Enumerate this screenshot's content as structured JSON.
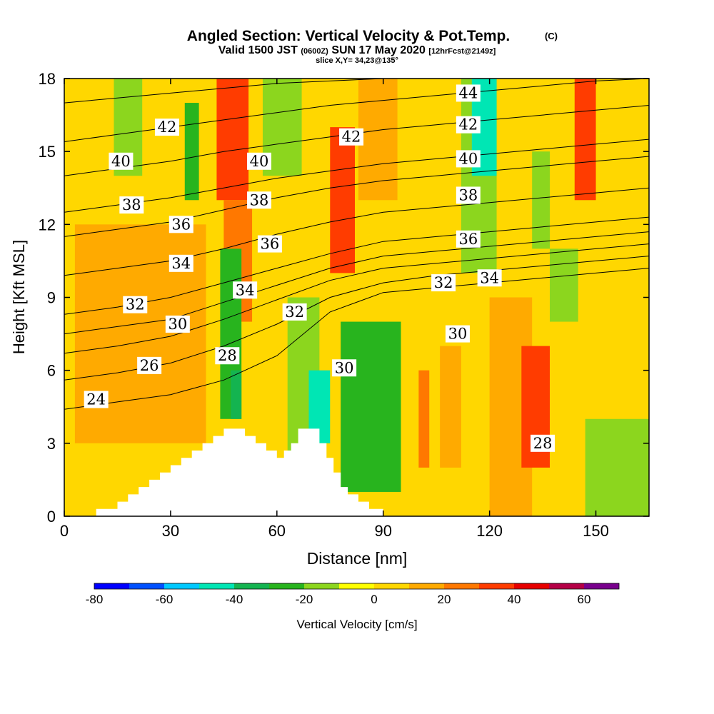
{
  "chart_data": {
    "type": "heatmap",
    "title": "Angled Section: Vertical Velocity & Pot.Temp.",
    "title_suffix": "(C)",
    "subtitle_main": "Valid 1500 JST",
    "subtitle_z": "(0600Z)",
    "subtitle_date": "SUN 17 May 2020",
    "subtitle_fcst": "[12hrFcst@2149z]",
    "slice_info": "slice X,Y= 34,23@135°",
    "xlabel": "Distance [nm]",
    "ylabel": "Height [Kft MSL]",
    "xlim": [
      0,
      165
    ],
    "ylim": [
      0,
      18
    ],
    "x_ticks": [
      "0",
      "30",
      "60",
      "90",
      "120",
      "150"
    ],
    "y_ticks": [
      "0",
      "3",
      "6",
      "9",
      "12",
      "15",
      "18"
    ],
    "colorbar": {
      "label": "Vertical Velocity [cm/s]",
      "tick_labels": [
        "-80",
        "-60",
        "-40",
        "-20",
        "0",
        "20",
        "40",
        "60"
      ],
      "range": [
        -80,
        70
      ],
      "step": 10,
      "colors": [
        "#0000ff",
        "#0050ff",
        "#00c8ff",
        "#00e6b4",
        "#14b450",
        "#28b41e",
        "#8cd61e",
        "#ffff00",
        "#ffd700",
        "#ffaa00",
        "#ff7800",
        "#ff3c00",
        "#e60000",
        "#b40046",
        "#78008c"
      ]
    },
    "velocity_cells": [
      {
        "x": [
          0,
          165
        ],
        "y": [
          0,
          18
        ],
        "value": 5
      },
      {
        "x": [
          3,
          40
        ],
        "y": [
          3,
          12
        ],
        "value": 15
      },
      {
        "x": [
          14,
          22
        ],
        "y": [
          14,
          18
        ],
        "value": -15
      },
      {
        "x": [
          34,
          38
        ],
        "y": [
          13,
          17
        ],
        "value": -25
      },
      {
        "x": [
          43,
          52
        ],
        "y": [
          13,
          18
        ],
        "value": 35
      },
      {
        "x": [
          45,
          53
        ],
        "y": [
          8,
          13
        ],
        "value": 25
      },
      {
        "x": [
          56,
          67
        ],
        "y": [
          14,
          18
        ],
        "value": -15
      },
      {
        "x": [
          44,
          50
        ],
        "y": [
          4,
          11
        ],
        "value": -25
      },
      {
        "x": [
          47,
          50
        ],
        "y": [
          4,
          6
        ],
        "value": -35
      },
      {
        "x": [
          63,
          72
        ],
        "y": [
          0,
          9
        ],
        "value": -15
      },
      {
        "x": [
          69,
          75
        ],
        "y": [
          3,
          6
        ],
        "value": -45
      },
      {
        "x": [
          75,
          82
        ],
        "y": [
          10,
          16
        ],
        "value": 35
      },
      {
        "x": [
          78,
          95
        ],
        "y": [
          1,
          8
        ],
        "value": -25
      },
      {
        "x": [
          83,
          94
        ],
        "y": [
          13,
          18
        ],
        "value": 15
      },
      {
        "x": [
          100,
          103
        ],
        "y": [
          2,
          6
        ],
        "value": 25
      },
      {
        "x": [
          106,
          112
        ],
        "y": [
          2,
          7
        ],
        "value": 15
      },
      {
        "x": [
          112,
          122
        ],
        "y": [
          10,
          18
        ],
        "value": -15
      },
      {
        "x": [
          115,
          122
        ],
        "y": [
          14,
          18
        ],
        "value": -45
      },
      {
        "x": [
          120,
          132
        ],
        "y": [
          0,
          9
        ],
        "value": 15
      },
      {
        "x": [
          129,
          137
        ],
        "y": [
          2,
          7
        ],
        "value": 35
      },
      {
        "x": [
          132,
          137
        ],
        "y": [
          11,
          15
        ],
        "value": -15
      },
      {
        "x": [
          137,
          145
        ],
        "y": [
          8,
          11
        ],
        "value": -15
      },
      {
        "x": [
          144,
          150
        ],
        "y": [
          13,
          18
        ],
        "value": 35
      },
      {
        "x": [
          147,
          165
        ],
        "y": [
          0,
          4
        ],
        "value": -15
      }
    ],
    "terrain_profile": [
      [
        0,
        0
      ],
      [
        9,
        0
      ],
      [
        9,
        0.3
      ],
      [
        15,
        0.3
      ],
      [
        15,
        0.6
      ],
      [
        18,
        0.6
      ],
      [
        18,
        0.9
      ],
      [
        21,
        0.9
      ],
      [
        21,
        1.2
      ],
      [
        24,
        1.2
      ],
      [
        24,
        1.5
      ],
      [
        27,
        1.5
      ],
      [
        27,
        1.8
      ],
      [
        30,
        1.8
      ],
      [
        30,
        2.1
      ],
      [
        33,
        2.1
      ],
      [
        33,
        2.4
      ],
      [
        36,
        2.4
      ],
      [
        36,
        2.7
      ],
      [
        39,
        2.7
      ],
      [
        39,
        3.0
      ],
      [
        42,
        3.0
      ],
      [
        42,
        3.3
      ],
      [
        45,
        3.3
      ],
      [
        45,
        3.6
      ],
      [
        48,
        3.6
      ],
      [
        48,
        3.6
      ],
      [
        51,
        3.6
      ],
      [
        51,
        3.3
      ],
      [
        54,
        3.3
      ],
      [
        54,
        3.0
      ],
      [
        57,
        3.0
      ],
      [
        57,
        2.7
      ],
      [
        60,
        2.7
      ],
      [
        60,
        2.4
      ],
      [
        62,
        2.4
      ],
      [
        62,
        2.7
      ],
      [
        64,
        2.7
      ],
      [
        64,
        3.0
      ],
      [
        66,
        3.0
      ],
      [
        66,
        3.6
      ],
      [
        72,
        3.6
      ],
      [
        72,
        3.0
      ],
      [
        74,
        3.0
      ],
      [
        74,
        2.4
      ],
      [
        76,
        2.4
      ],
      [
        76,
        1.8
      ],
      [
        78,
        1.8
      ],
      [
        78,
        1.2
      ],
      [
        80,
        1.2
      ],
      [
        80,
        0.9
      ],
      [
        83,
        0.9
      ],
      [
        83,
        0.6
      ],
      [
        86,
        0.6
      ],
      [
        86,
        0.3
      ],
      [
        90,
        0.3
      ],
      [
        90,
        0
      ],
      [
        165,
        0
      ]
    ],
    "theta_contours": [
      {
        "label": "24",
        "label_x": 9,
        "label_y": 4.8,
        "points": [
          [
            0,
            4.4
          ],
          [
            15,
            4.7
          ],
          [
            30,
            5.0
          ],
          [
            45,
            5.6
          ],
          [
            60,
            6.6
          ],
          [
            75,
            8.4
          ],
          [
            90,
            9.2
          ],
          [
            105,
            9.4
          ],
          [
            120,
            9.6
          ],
          [
            135,
            9.8
          ],
          [
            150,
            10.0
          ],
          [
            165,
            10.2
          ]
        ]
      },
      {
        "label": "26",
        "label_x": 24,
        "label_y": 6.2,
        "points": [
          [
            0,
            5.6
          ],
          [
            15,
            5.9
          ],
          [
            30,
            6.3
          ],
          [
            45,
            7.0
          ],
          [
            60,
            7.9
          ],
          [
            75,
            9.0
          ],
          [
            90,
            9.6
          ],
          [
            105,
            9.9
          ],
          [
            120,
            10.1
          ],
          [
            135,
            10.3
          ],
          [
            150,
            10.5
          ],
          [
            165,
            10.7
          ]
        ]
      },
      {
        "label": "28",
        "label_x": 46,
        "label_y": 6.6,
        "points": [
          [
            0,
            6.7
          ],
          [
            15,
            7.0
          ],
          [
            30,
            7.4
          ],
          [
            45,
            8.1
          ],
          [
            60,
            8.9
          ],
          [
            75,
            9.7
          ],
          [
            90,
            10.2
          ],
          [
            105,
            10.4
          ],
          [
            120,
            10.6
          ],
          [
            135,
            10.8
          ],
          [
            150,
            11.0
          ],
          [
            165,
            11.2
          ]
        ]
      },
      {
        "label": "30",
        "label_x": 32,
        "label_y": 7.9,
        "points": [
          [
            0,
            7.5
          ],
          [
            15,
            7.8
          ],
          [
            30,
            8.1
          ],
          [
            45,
            8.8
          ],
          [
            60,
            9.5
          ],
          [
            75,
            10.2
          ],
          [
            90,
            10.7
          ],
          [
            105,
            10.9
          ],
          [
            120,
            11.1
          ],
          [
            135,
            11.3
          ],
          [
            150,
            11.5
          ],
          [
            165,
            11.7
          ]
        ]
      },
      {
        "label": "32",
        "label_x": 20,
        "label_y": 8.7,
        "points": [
          [
            0,
            8.3
          ],
          [
            15,
            8.6
          ],
          [
            30,
            9.0
          ],
          [
            45,
            9.6
          ],
          [
            60,
            10.2
          ],
          [
            75,
            10.8
          ],
          [
            90,
            11.3
          ],
          [
            105,
            11.5
          ],
          [
            120,
            11.7
          ],
          [
            135,
            11.9
          ],
          [
            150,
            12.1
          ],
          [
            165,
            12.3
          ]
        ]
      },
      {
        "label": "34",
        "label_x": 33,
        "label_y": 10.4,
        "points": [
          [
            0,
            9.9
          ],
          [
            15,
            10.2
          ],
          [
            30,
            10.5
          ],
          [
            45,
            11.0
          ],
          [
            60,
            11.6
          ],
          [
            75,
            12.1
          ],
          [
            90,
            12.5
          ],
          [
            105,
            12.7
          ],
          [
            120,
            12.9
          ],
          [
            135,
            13.1
          ],
          [
            150,
            13.3
          ],
          [
            165,
            13.5
          ]
        ]
      },
      {
        "label": "36",
        "label_x": 33,
        "label_y": 12.0,
        "points": [
          [
            0,
            11.5
          ],
          [
            15,
            11.8
          ],
          [
            30,
            12.1
          ],
          [
            45,
            12.6
          ],
          [
            60,
            13.1
          ],
          [
            75,
            13.5
          ],
          [
            90,
            13.8
          ],
          [
            105,
            14.0
          ],
          [
            120,
            14.2
          ],
          [
            135,
            14.4
          ],
          [
            150,
            14.6
          ],
          [
            165,
            14.8
          ]
        ]
      },
      {
        "label": "38",
        "label_x": 19,
        "label_y": 12.8,
        "points": [
          [
            0,
            12.5
          ],
          [
            15,
            12.8
          ],
          [
            30,
            13.1
          ],
          [
            45,
            13.5
          ],
          [
            60,
            13.9
          ],
          [
            75,
            14.2
          ],
          [
            90,
            14.5
          ],
          [
            105,
            14.7
          ],
          [
            120,
            14.9
          ],
          [
            135,
            15.1
          ],
          [
            150,
            15.3
          ],
          [
            165,
            15.5
          ]
        ]
      },
      {
        "label": "40",
        "label_x": 16,
        "label_y": 14.6,
        "points": [
          [
            0,
            14.0
          ],
          [
            15,
            14.3
          ],
          [
            30,
            14.6
          ],
          [
            45,
            15.0
          ],
          [
            60,
            15.3
          ],
          [
            75,
            15.6
          ],
          [
            90,
            15.9
          ],
          [
            105,
            16.1
          ],
          [
            120,
            16.3
          ],
          [
            135,
            16.5
          ],
          [
            150,
            16.7
          ],
          [
            165,
            16.9
          ]
        ]
      },
      {
        "label": "42",
        "label_x": 29,
        "label_y": 16.0,
        "points": [
          [
            0,
            15.4
          ],
          [
            15,
            15.7
          ],
          [
            30,
            16.0
          ],
          [
            45,
            16.3
          ],
          [
            60,
            16.6
          ],
          [
            75,
            16.9
          ],
          [
            90,
            17.1
          ],
          [
            105,
            17.3
          ],
          [
            120,
            17.5
          ],
          [
            135,
            17.7
          ],
          [
            150,
            17.9
          ],
          [
            165,
            18.0
          ]
        ]
      },
      {
        "label": "44",
        "label_x": 114,
        "label_y": 17.4,
        "points": [
          [
            0,
            17.0
          ],
          [
            15,
            17.2
          ],
          [
            30,
            17.4
          ],
          [
            45,
            17.6
          ],
          [
            60,
            17.8
          ],
          [
            75,
            17.9
          ],
          [
            90,
            18.0
          ]
        ]
      }
    ],
    "extra_labels": [
      {
        "label": "40",
        "x": 55,
        "y": 14.6
      },
      {
        "label": "38",
        "x": 55,
        "y": 13.0
      },
      {
        "label": "36",
        "x": 58,
        "y": 11.2
      },
      {
        "label": "34",
        "x": 51,
        "y": 9.3
      },
      {
        "label": "32",
        "x": 65,
        "y": 8.4
      },
      {
        "label": "30",
        "x": 79,
        "y": 6.1
      },
      {
        "label": "42",
        "x": 81,
        "y": 15.6
      },
      {
        "label": "42",
        "x": 114,
        "y": 16.1
      },
      {
        "label": "40",
        "x": 114,
        "y": 14.7
      },
      {
        "label": "38",
        "x": 114,
        "y": 13.2
      },
      {
        "label": "36",
        "x": 114,
        "y": 11.4
      },
      {
        "label": "32",
        "x": 107,
        "y": 9.6
      },
      {
        "label": "34",
        "x": 120,
        "y": 9.8
      },
      {
        "label": "30",
        "x": 111,
        "y": 7.5
      },
      {
        "label": "28",
        "x": 135,
        "y": 3.0
      }
    ]
  }
}
